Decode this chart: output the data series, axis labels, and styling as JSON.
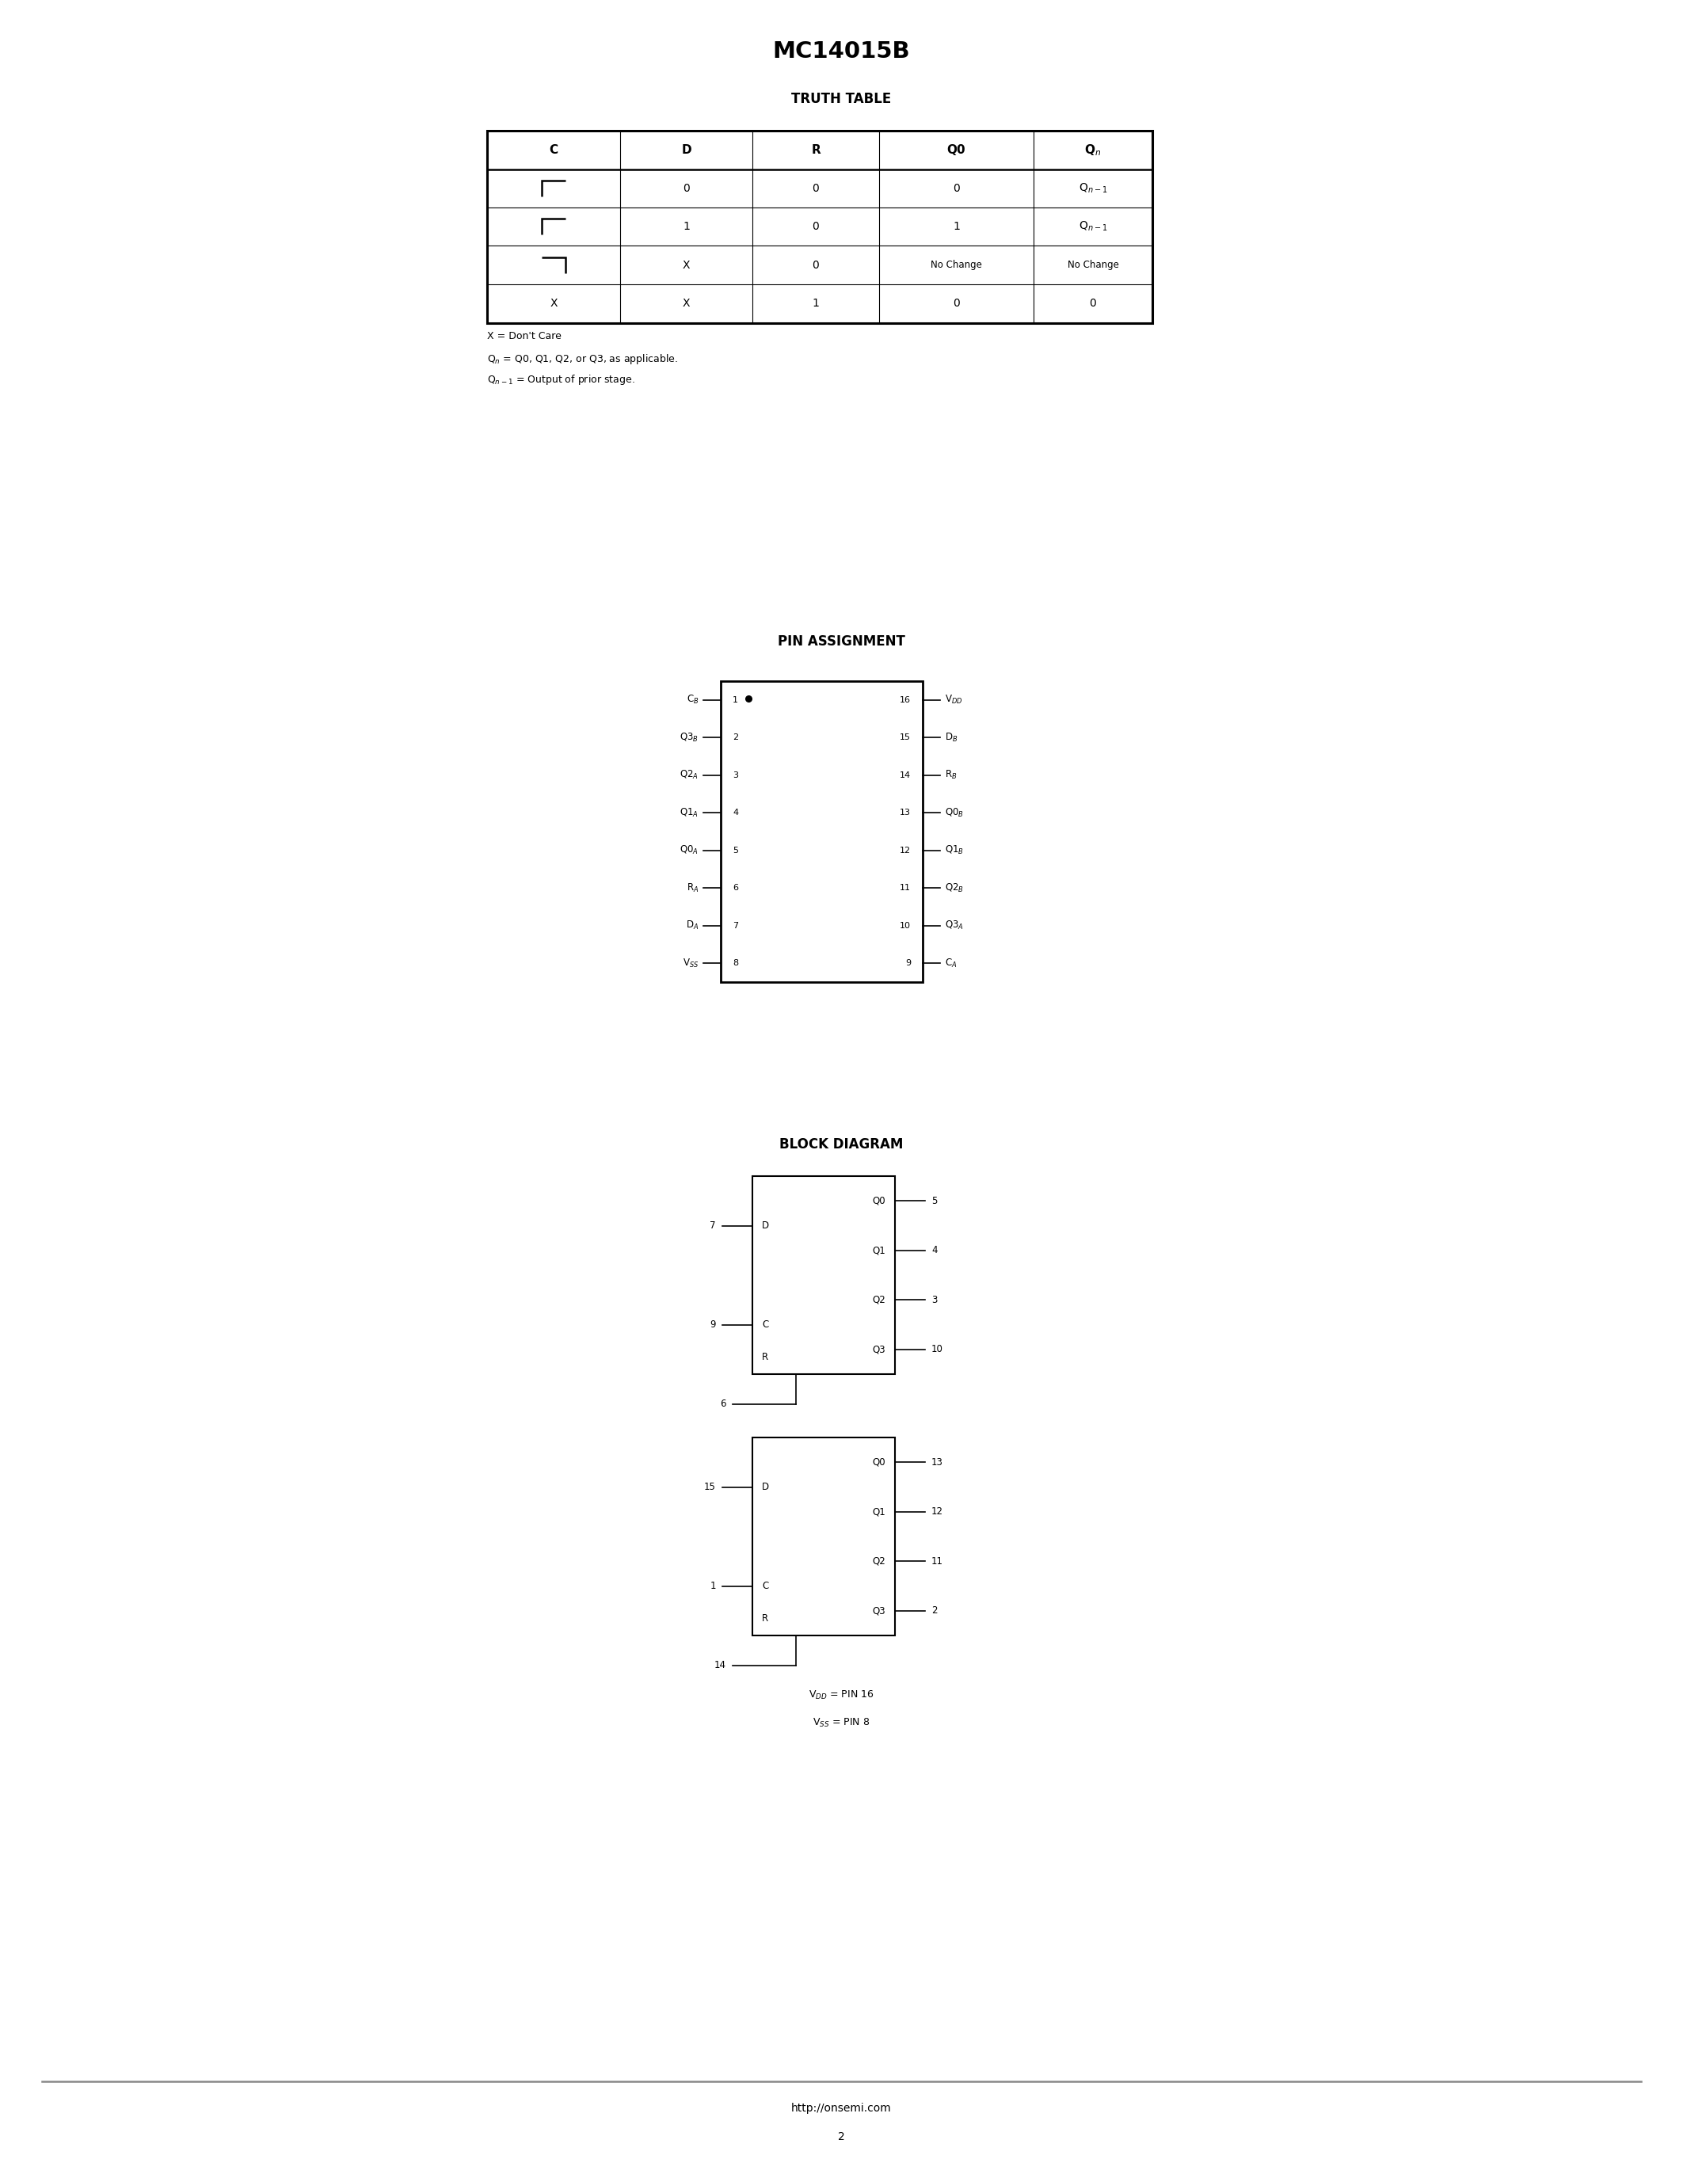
{
  "title": "MC14015B",
  "bg_color": "#ffffff",
  "text_color": "#000000",
  "truth_table_title": "TRUTH TABLE",
  "footnotes": [
    "X = Don't Care",
    "Q$_n$ = Q0, Q1, Q2, or Q3, as applicable.",
    "Q$_{n-1}$ = Output of prior stage."
  ],
  "pin_assignment_title": "PIN ASSIGNMENT",
  "left_pins": [
    [
      1,
      "C$_B$"
    ],
    [
      2,
      "Q3$_B$"
    ],
    [
      3,
      "Q2$_A$"
    ],
    [
      4,
      "Q1$_A$"
    ],
    [
      5,
      "Q0$_A$"
    ],
    [
      6,
      "R$_A$"
    ],
    [
      7,
      "D$_A$"
    ],
    [
      8,
      "V$_{SS}$"
    ]
  ],
  "right_pins": [
    [
      16,
      "V$_{DD}$"
    ],
    [
      15,
      "D$_B$"
    ],
    [
      14,
      "R$_B$"
    ],
    [
      13,
      "Q0$_B$"
    ],
    [
      12,
      "Q1$_B$"
    ],
    [
      11,
      "Q2$_B$"
    ],
    [
      10,
      "Q3$_A$"
    ],
    [
      9,
      "C$_A$"
    ]
  ],
  "block_diagram_title": "BLOCK DIAGRAM",
  "blockA": {
    "d_pin": "7",
    "c_pin": "9",
    "r_pin": "6",
    "q_pins": [
      "5",
      "4",
      "3",
      "10"
    ],
    "q_labels": [
      "Q0",
      "Q1",
      "Q2",
      "Q3"
    ]
  },
  "blockB": {
    "d_pin": "15",
    "c_pin": "1",
    "r_pin": "14",
    "q_pins": [
      "13",
      "12",
      "11",
      "2"
    ],
    "q_labels": [
      "Q0",
      "Q1",
      "Q2",
      "Q3"
    ]
  },
  "footer_url": "http://onsemi.com",
  "footer_page": "2"
}
